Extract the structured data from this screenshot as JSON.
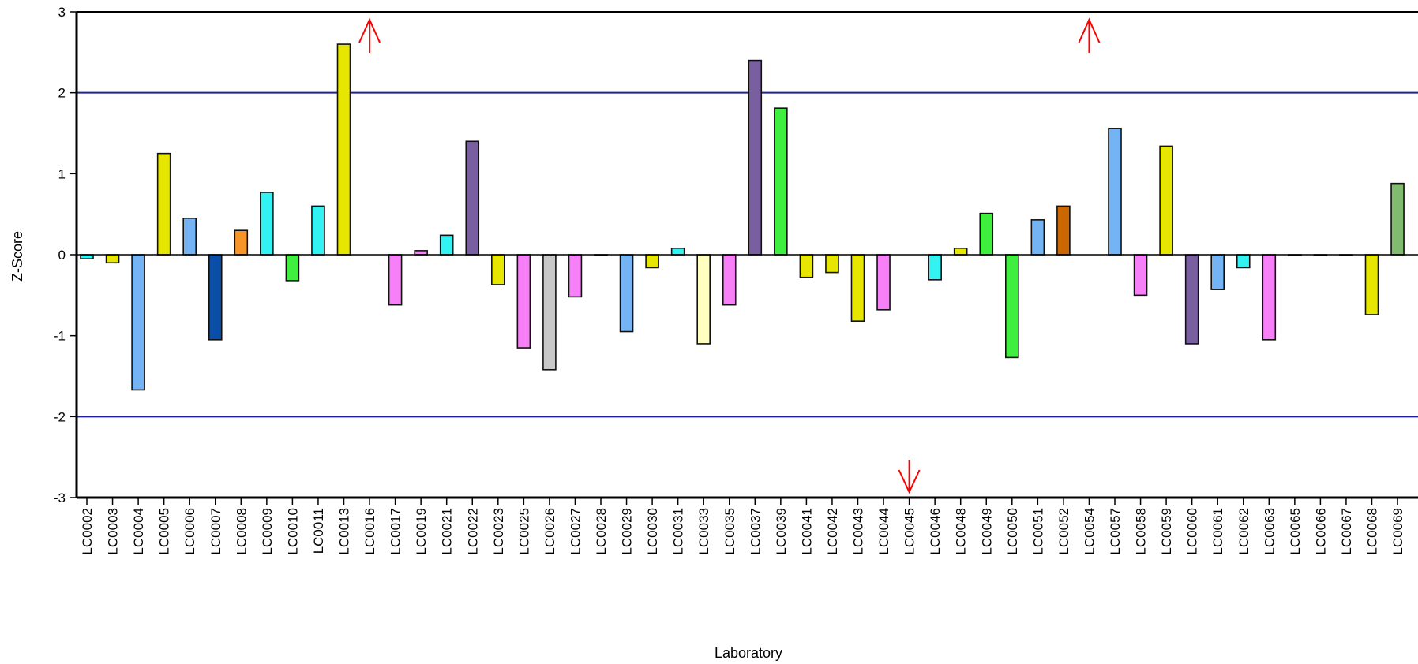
{
  "chart_data": {
    "type": "bar",
    "title": "",
    "xlabel": "Laboratory",
    "ylabel": "Z-Score",
    "ylim": [
      -3,
      3
    ],
    "yticks": [
      -3,
      -2,
      -1,
      0,
      1,
      2,
      3
    ],
    "reference_lines": [
      {
        "value": 2,
        "color": "#1f1f9f"
      },
      {
        "value": -2,
        "color": "#1f1f9f"
      }
    ],
    "categories": [
      "LC0002",
      "LC0003",
      "LC0004",
      "LC0005",
      "LC0006",
      "LC0007",
      "LC0008",
      "LC0009",
      "LC0010",
      "LC0011",
      "LC0013",
      "LC0016",
      "LC0017",
      "LC0019",
      "LC0021",
      "LC0022",
      "LC0023",
      "LC0025",
      "LC0026",
      "LC0027",
      "LC0028",
      "LC0029",
      "LC0030",
      "LC0031",
      "LC0033",
      "LC0035",
      "LC0037",
      "LC0039",
      "LC0041",
      "LC0042",
      "LC0043",
      "LC0044",
      "LC0045",
      "LC0046",
      "LC0048",
      "LC0049",
      "LC0050",
      "LC0051",
      "LC0052",
      "LC0054",
      "LC0057",
      "LC0058",
      "LC0059",
      "LC0060",
      "LC0061",
      "LC0062",
      "LC0063",
      "LC0065",
      "LC0066",
      "LC0067",
      "LC0068",
      "LC0069"
    ],
    "values": [
      -0.05,
      -0.1,
      -1.67,
      1.25,
      0.45,
      -1.05,
      0.3,
      0.77,
      -0.32,
      0.6,
      2.6,
      null,
      -0.62,
      0.05,
      0.24,
      1.4,
      -0.37,
      -1.15,
      -1.42,
      -0.52,
      0.0,
      -0.95,
      -0.16,
      0.08,
      -1.1,
      -0.62,
      2.4,
      1.81,
      -0.28,
      -0.22,
      -0.82,
      -0.68,
      null,
      -0.31,
      0.08,
      0.51,
      -1.27,
      0.43,
      0.6,
      null,
      1.56,
      -0.5,
      1.34,
      -1.1,
      -0.43,
      -0.16,
      -1.05,
      0.0,
      0.0,
      0.0,
      -0.74,
      0.88
    ],
    "colors": [
      "#33f2f2",
      "#e6e600",
      "#74b4f4",
      "#e6e600",
      "#74b4f4",
      "#0a4ea8",
      "#f6962a",
      "#33f2f2",
      "#40ee40",
      "#33f2f2",
      "#e6e600",
      null,
      "#f77ff7",
      "#f77ff7",
      "#33f2f2",
      "#7a5fa0",
      "#e6e600",
      "#f77ff7",
      "#c8c8c8",
      "#f77ff7",
      "#e6e600",
      "#74b4f4",
      "#e6e600",
      "#33f2f2",
      "#ffffc0",
      "#f77ff7",
      "#7a5fa0",
      "#40ee40",
      "#e6e600",
      "#e6e600",
      "#e6e600",
      "#f77ff7",
      null,
      "#33f2f2",
      "#e6e600",
      "#40ee40",
      "#40ee40",
      "#74b4f4",
      "#cc6600",
      null,
      "#74b4f4",
      "#f77ff7",
      "#e6e600",
      "#7a5fa0",
      "#74b4f4",
      "#33f2f2",
      "#f77ff7",
      "#40ee40",
      "#40ee40",
      "#40ee40",
      "#e6e600",
      "#80bb70"
    ],
    "out_of_range_markers": [
      {
        "category": "LC0016",
        "direction": "up"
      },
      {
        "category": "LC0054",
        "direction": "up"
      },
      {
        "category": "LC0045",
        "direction": "down"
      }
    ],
    "marker_color": "#ff0000",
    "grid": false,
    "legend": "none"
  }
}
